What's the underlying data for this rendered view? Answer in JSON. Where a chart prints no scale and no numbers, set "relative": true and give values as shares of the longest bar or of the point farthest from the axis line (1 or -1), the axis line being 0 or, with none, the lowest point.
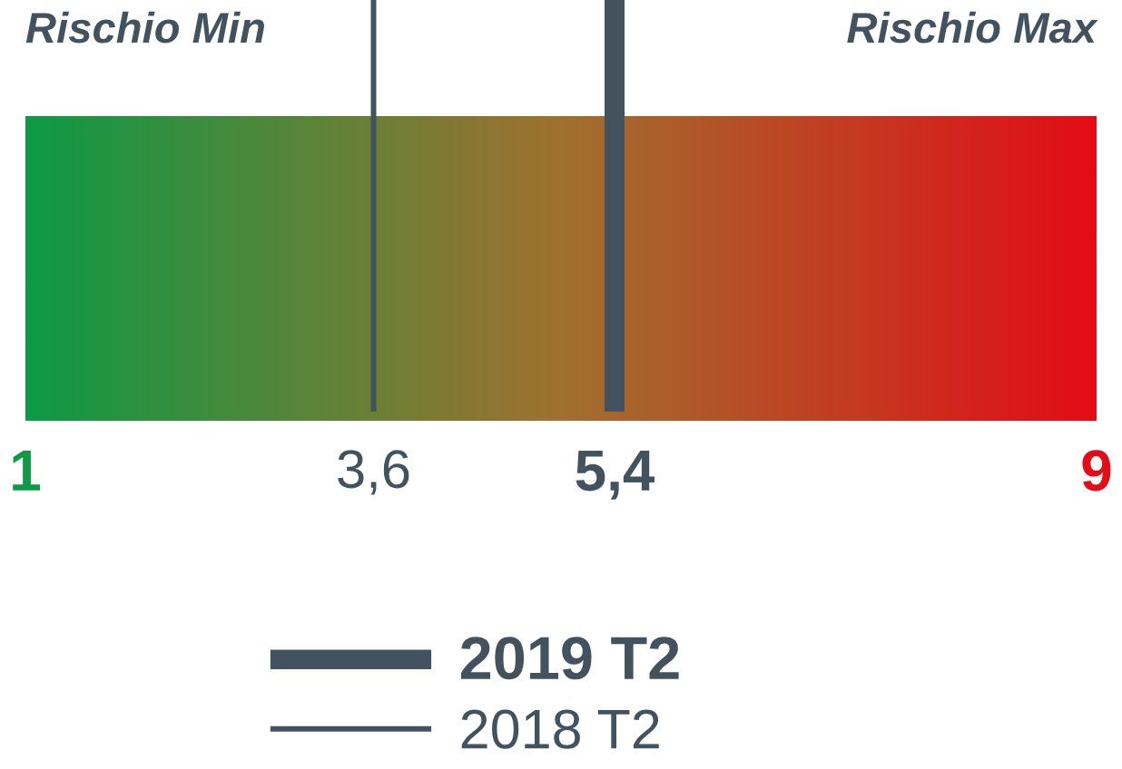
{
  "chart_data": {
    "type": "bar",
    "relative": true,
    "annotations": [
      "Rischio Min",
      "Rischio Max"
    ],
    "xlim": [
      1,
      9
    ],
    "xticks": [
      1,
      {
        "value": 3.6,
        "label": "3,6"
      },
      {
        "value": 5.4,
        "label": "5,4"
      },
      9
    ],
    "bands": [
      {
        "axis": "x",
        "from": 1,
        "to": 9,
        "color": [
          "#0e9a45",
          "#a0712f",
          "#e30c17"
        ]
      }
    ],
    "series": [
      {
        "name": "2019 T2",
        "color": "#43525f",
        "x": [
          5.4
        ],
        "values": [
          1
        ]
      },
      {
        "name": "2018 T2",
        "color": "#43525f",
        "x": [
          3.6
        ],
        "values": [
          1
        ]
      }
    ],
    "legend": "bottom"
  }
}
